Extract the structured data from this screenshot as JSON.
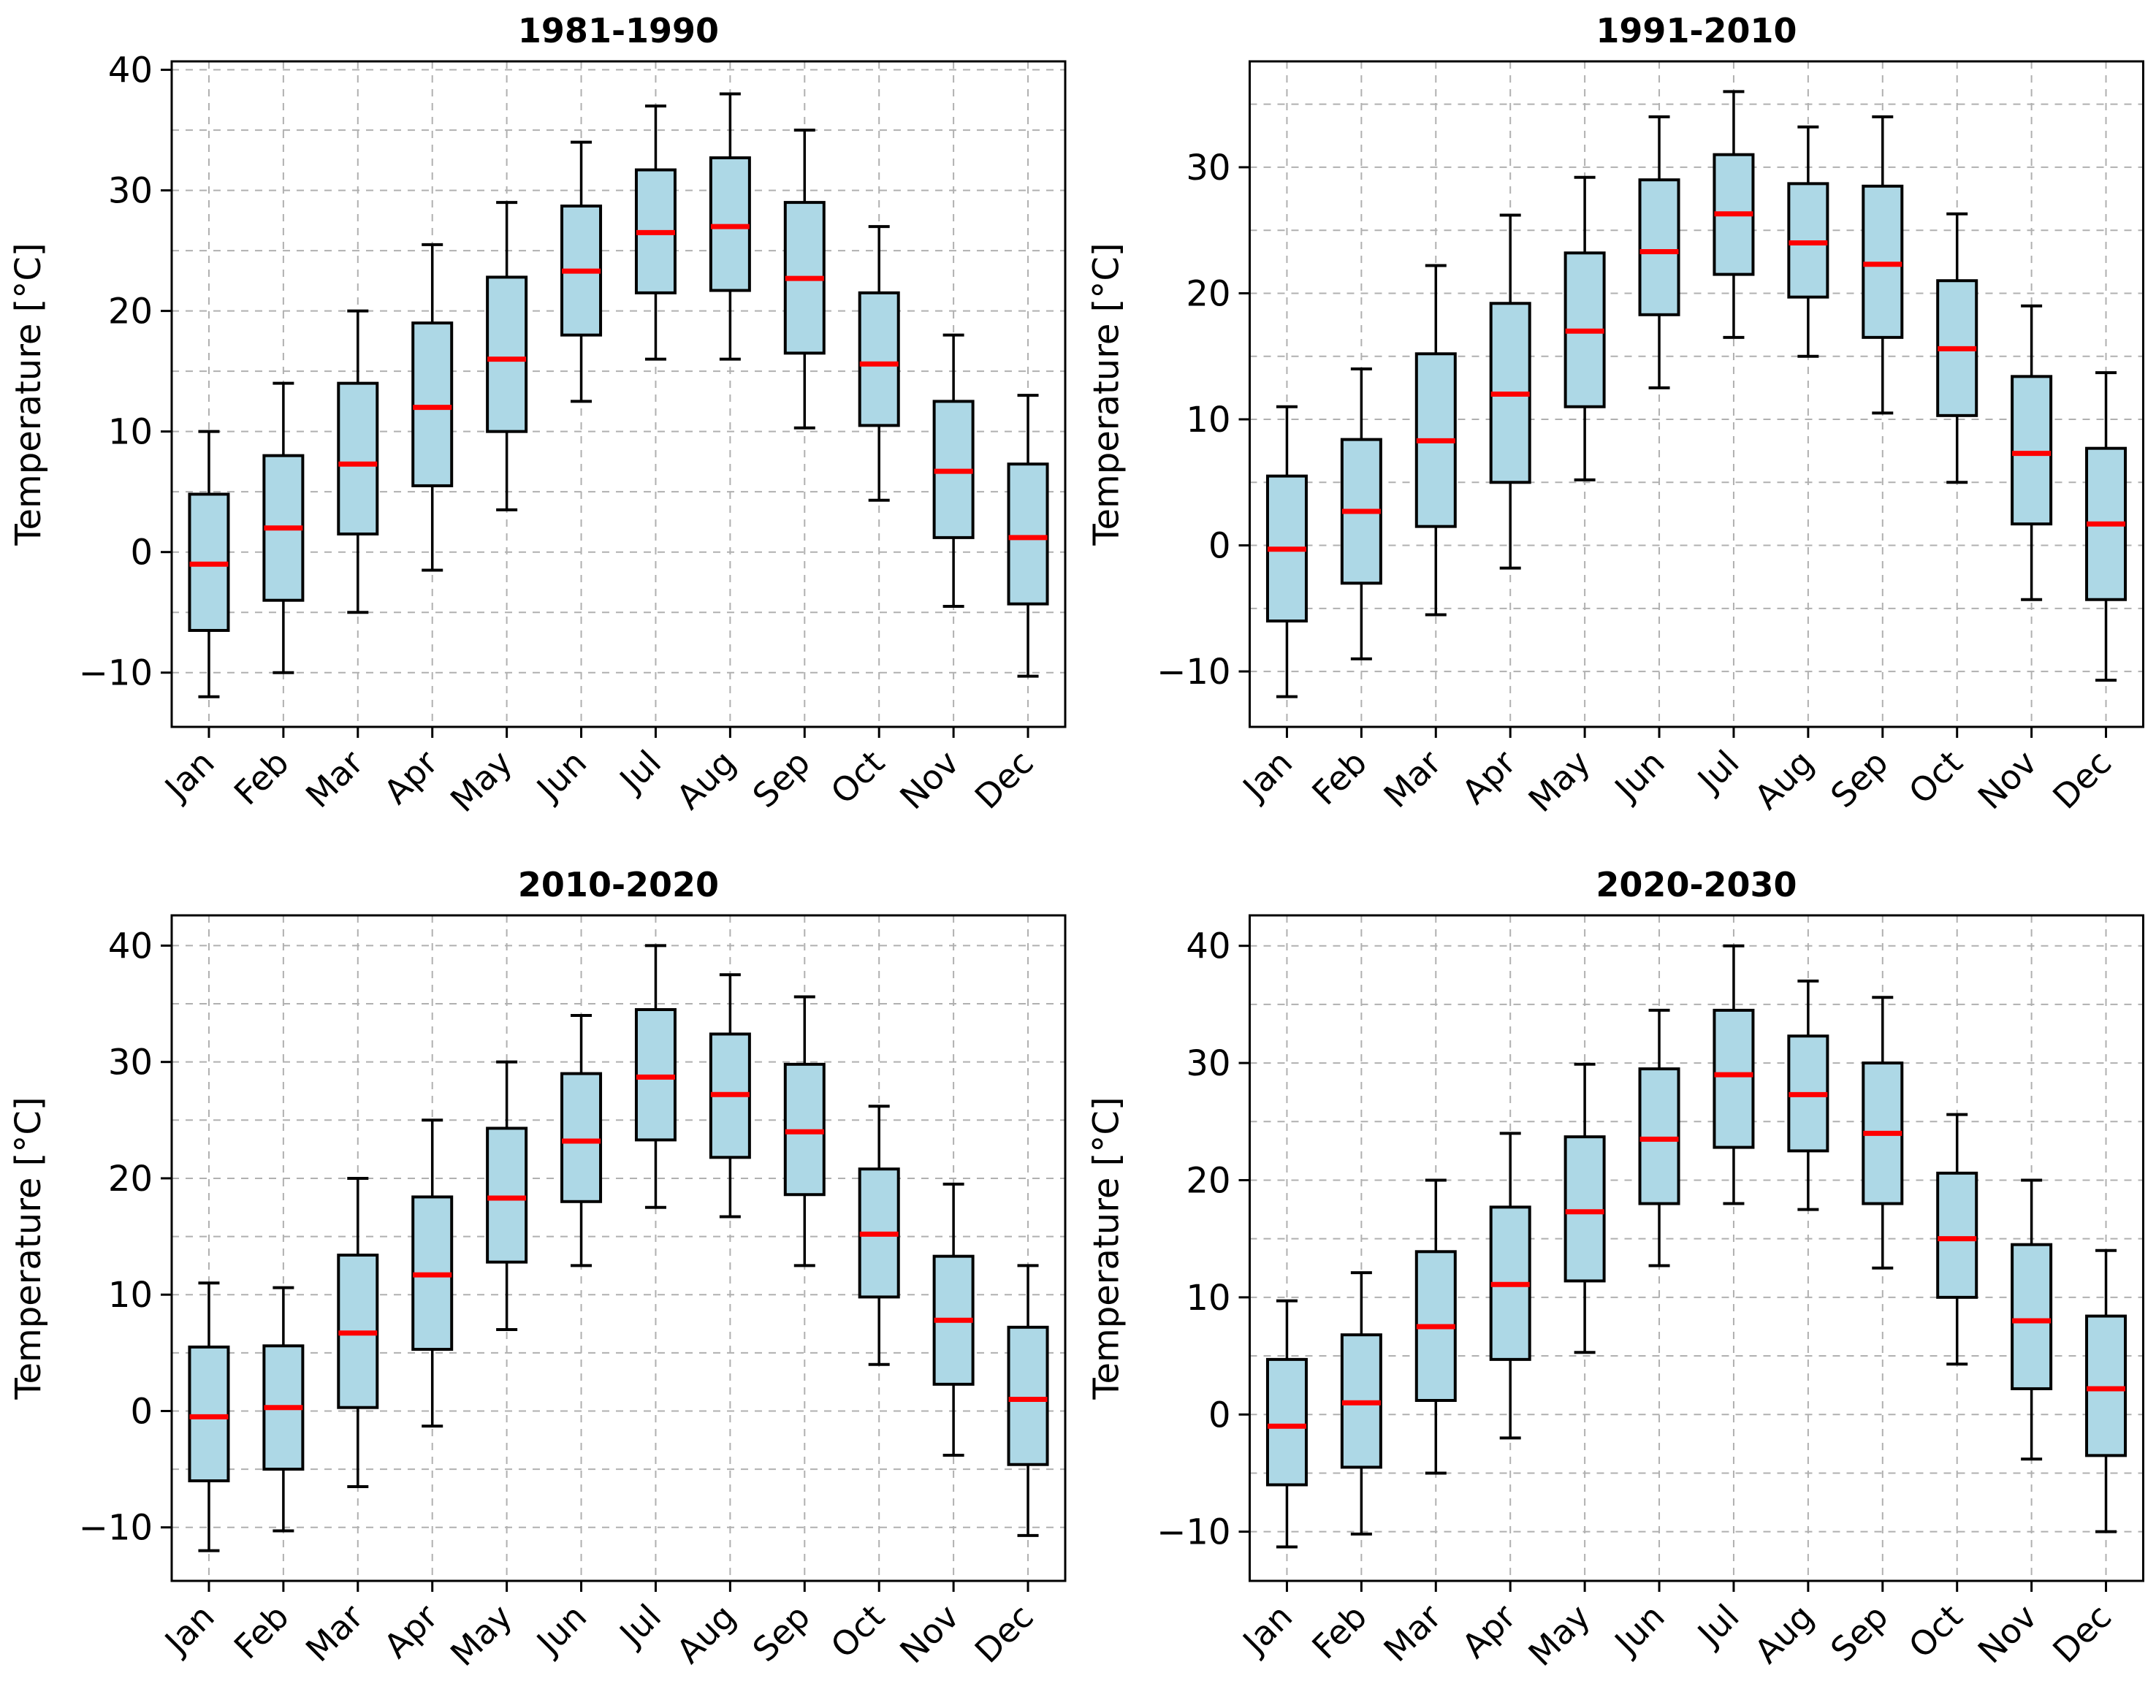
{
  "style": {
    "box_fill": "#ADD8E6",
    "median_color": "#FF0000",
    "line_color": "#000000",
    "grid_color": "#B0B0B0",
    "background": "#FFFFFF"
  },
  "chart_data": [
    {
      "type": "boxplot",
      "title": "1981-1990",
      "ylabel": "Temperature [°C]",
      "xlabel": "",
      "grid": "both, dashed",
      "legend": "none",
      "categories": [
        "Jan",
        "Feb",
        "Mar",
        "Apr",
        "May",
        "Jun",
        "Jul",
        "Aug",
        "Sep",
        "Oct",
        "Nov",
        "Dec"
      ],
      "ylim": [
        -14.5,
        40.7
      ],
      "grid_step": 5,
      "ytick_values": [
        -10,
        0,
        10,
        20,
        30,
        40
      ],
      "ytick_labels": [
        "−10",
        "0",
        "10",
        "20",
        "30",
        "40"
      ],
      "box_value_order": [
        "whisker_low",
        "q1",
        "median",
        "q3",
        "whisker_high"
      ],
      "boxes": [
        [
          -12.0,
          -6.5,
          -1.0,
          4.8,
          10.0
        ],
        [
          -10.0,
          -4.0,
          2.0,
          8.0,
          14.0
        ],
        [
          -5.0,
          1.5,
          7.3,
          14.0,
          20.0
        ],
        [
          -1.5,
          5.5,
          12.0,
          19.0,
          25.5
        ],
        [
          3.5,
          10.0,
          16.0,
          22.8,
          29.0
        ],
        [
          12.5,
          18.0,
          23.3,
          28.7,
          34.0
        ],
        [
          16.0,
          21.5,
          26.5,
          31.7,
          37.0
        ],
        [
          16.0,
          21.7,
          27.0,
          32.7,
          38.0
        ],
        [
          10.3,
          16.5,
          22.7,
          29.0,
          35.0
        ],
        [
          4.3,
          10.5,
          15.6,
          21.5,
          27.0
        ],
        [
          -4.5,
          1.2,
          6.7,
          12.5,
          18.0
        ],
        [
          -10.3,
          -4.3,
          1.2,
          7.3,
          13.0
        ]
      ]
    },
    {
      "type": "boxplot",
      "title": "1991-2010",
      "ylabel": "Temperature [°C]",
      "xlabel": "",
      "grid": "both, dashed",
      "legend": "none",
      "categories": [
        "Jan",
        "Feb",
        "Mar",
        "Apr",
        "May",
        "Jun",
        "Jul",
        "Aug",
        "Sep",
        "Oct",
        "Nov",
        "Dec"
      ],
      "ylim": [
        -14.4,
        38.4
      ],
      "grid_step": 5,
      "ytick_values": [
        -10,
        0,
        10,
        20,
        30
      ],
      "ytick_labels": [
        "−10",
        "0",
        "10",
        "20",
        "30"
      ],
      "box_value_order": [
        "whisker_low",
        "q1",
        "median",
        "q3",
        "whisker_high"
      ],
      "boxes": [
        [
          -12.0,
          -6.0,
          -0.3,
          5.5,
          11.0
        ],
        [
          -9.0,
          -3.0,
          2.7,
          8.4,
          14.0
        ],
        [
          -5.5,
          1.5,
          8.3,
          15.2,
          22.2
        ],
        [
          -1.8,
          5.0,
          12.0,
          19.2,
          26.2
        ],
        [
          5.2,
          11.0,
          17.0,
          23.2,
          29.2
        ],
        [
          12.5,
          18.3,
          23.3,
          29.0,
          34.0
        ],
        [
          16.5,
          21.5,
          26.3,
          31.0,
          36.0
        ],
        [
          15.0,
          19.7,
          24.0,
          28.7,
          33.2
        ],
        [
          10.5,
          16.5,
          22.3,
          28.5,
          34.0
        ],
        [
          5.0,
          10.3,
          15.6,
          21.0,
          26.3
        ],
        [
          -4.3,
          1.7,
          7.3,
          13.4,
          19.0
        ],
        [
          -10.7,
          -4.3,
          1.7,
          7.7,
          13.7
        ]
      ]
    },
    {
      "type": "boxplot",
      "title": "2010-2020",
      "ylabel": "Temperature [°C]",
      "xlabel": "",
      "grid": "both, dashed",
      "legend": "none",
      "categories": [
        "Jan",
        "Feb",
        "Mar",
        "Apr",
        "May",
        "Jun",
        "Jul",
        "Aug",
        "Sep",
        "Oct",
        "Nov",
        "Dec"
      ],
      "ylim": [
        -14.6,
        42.6
      ],
      "grid_step": 5,
      "ytick_values": [
        -10,
        0,
        10,
        20,
        30,
        40
      ],
      "ytick_labels": [
        "−10",
        "0",
        "10",
        "20",
        "30",
        "40"
      ],
      "box_value_order": [
        "whisker_low",
        "q1",
        "median",
        "q3",
        "whisker_high"
      ],
      "boxes": [
        [
          -12.0,
          -6.0,
          -0.5,
          5.5,
          11.0
        ],
        [
          -10.3,
          -5.0,
          0.3,
          5.6,
          10.6
        ],
        [
          -6.5,
          0.3,
          6.7,
          13.4,
          20.0
        ],
        [
          -1.3,
          5.3,
          11.7,
          18.4,
          25.0
        ],
        [
          7.0,
          12.8,
          18.3,
          24.3,
          30.0
        ],
        [
          12.5,
          18.0,
          23.2,
          29.0,
          34.0
        ],
        [
          17.5,
          23.3,
          28.7,
          34.5,
          40.0
        ],
        [
          16.7,
          21.8,
          27.2,
          32.4,
          37.5
        ],
        [
          12.5,
          18.6,
          24.0,
          29.8,
          35.6
        ],
        [
          4.0,
          9.8,
          15.2,
          20.8,
          26.2
        ],
        [
          -3.8,
          2.3,
          7.8,
          13.3,
          19.5
        ],
        [
          -10.7,
          -4.6,
          1.0,
          7.2,
          12.5
        ]
      ]
    },
    {
      "type": "boxplot",
      "title": "2020-2030",
      "ylabel": "Temperature [°C]",
      "xlabel": "",
      "grid": "both, dashed",
      "legend": "none",
      "categories": [
        "Jan",
        "Feb",
        "Mar",
        "Apr",
        "May",
        "Jun",
        "Jul",
        "Aug",
        "Sep",
        "Oct",
        "Nov",
        "Dec"
      ],
      "ylim": [
        -14.2,
        42.6
      ],
      "grid_step": 5,
      "ytick_values": [
        -10,
        0,
        10,
        20,
        30,
        40
      ],
      "ytick_labels": [
        "−10",
        "0",
        "10",
        "20",
        "30",
        "40"
      ],
      "box_value_order": [
        "whisker_low",
        "q1",
        "median",
        "q3",
        "whisker_high"
      ],
      "boxes": [
        [
          -11.3,
          -6.0,
          -1.0,
          4.7,
          9.7
        ],
        [
          -10.2,
          -4.5,
          1.0,
          6.8,
          12.1
        ],
        [
          -5.0,
          1.2,
          7.5,
          13.9,
          20.0
        ],
        [
          -2.0,
          4.7,
          11.1,
          17.7,
          24.0
        ],
        [
          5.3,
          11.4,
          17.3,
          23.7,
          29.9
        ],
        [
          12.7,
          18.0,
          23.5,
          29.5,
          34.5
        ],
        [
          18.0,
          22.8,
          29.0,
          34.5,
          40.0
        ],
        [
          17.5,
          22.5,
          27.3,
          32.3,
          37.0
        ],
        [
          12.5,
          18.0,
          24.0,
          30.0,
          35.6
        ],
        [
          4.3,
          10.0,
          15.0,
          20.6,
          25.6
        ],
        [
          -3.8,
          2.2,
          8.0,
          14.5,
          20.0
        ],
        [
          -10.0,
          -3.5,
          2.2,
          8.4,
          14.0
        ]
      ]
    }
  ]
}
